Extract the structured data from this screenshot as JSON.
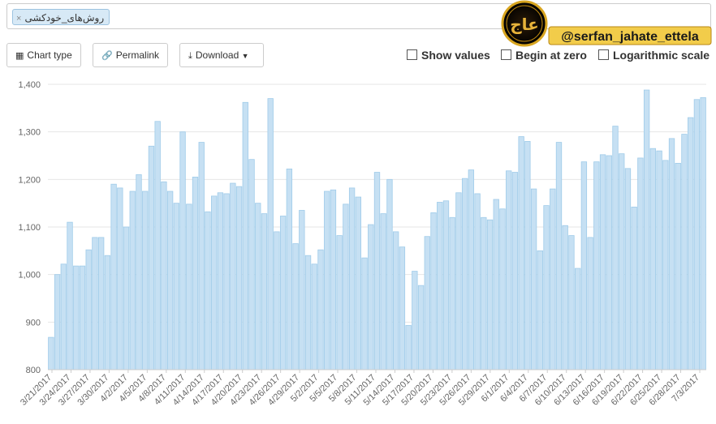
{
  "search": {
    "tag_label": "روش‌های_خودکشی",
    "remove_glyph": "×"
  },
  "watermark": {
    "text": "@serfan_jahate_ettela",
    "emblem_text": "عاج"
  },
  "toolbar": {
    "chart_type_label": "Chart type",
    "permalink_label": "Permalink",
    "download_label": "Download",
    "show_values_label": "Show values",
    "begin_at_zero_label": "Begin at zero",
    "log_scale_label": "Logarithmic scale"
  },
  "colors": {
    "bar_fill": "#c6e0f3",
    "bar_stroke": "#9fcbe9",
    "grid": "#e6e6e6",
    "axis_text": "#666666"
  },
  "chart_data": {
    "type": "bar",
    "ylim": [
      800,
      1400
    ],
    "yticks": [
      "800",
      "900",
      "1,000",
      "1,100",
      "1,200",
      "1,300",
      "1,400"
    ],
    "ytick_values": [
      800,
      900,
      1000,
      1100,
      1200,
      1300,
      1400
    ],
    "xtick_labels": [
      "3/21/2017",
      "3/24/2017",
      "3/27/2017",
      "3/30/2017",
      "4/2/2017",
      "4/5/2017",
      "4/8/2017",
      "4/11/2017",
      "4/14/2017",
      "4/17/2017",
      "4/20/2017",
      "4/23/2017",
      "4/26/2017",
      "4/29/2017",
      "5/2/2017",
      "5/5/2017",
      "5/8/2017",
      "5/11/2017",
      "5/14/2017",
      "5/17/2017",
      "5/20/2017",
      "5/23/2017",
      "5/26/2017",
      "5/29/2017",
      "6/1/2017",
      "6/4/2017",
      "6/7/2017",
      "6/10/2017",
      "6/13/2017",
      "6/16/2017",
      "6/19/2017",
      "6/22/2017",
      "6/25/2017",
      "6/28/2017",
      "7/3/2017"
    ],
    "start_date": "3/21/2017",
    "values": [
      868,
      1000,
      1022,
      1110,
      1018,
      1018,
      1052,
      1078,
      1078,
      1040,
      1190,
      1182,
      1100,
      1175,
      1210,
      1175,
      1270,
      1322,
      1195,
      1175,
      1150,
      1300,
      1148,
      1205,
      1278,
      1132,
      1165,
      1172,
      1170,
      1192,
      1185,
      1362,
      1242,
      1150,
      1128,
      1370,
      1090,
      1123,
      1222,
      1065,
      1135,
      1040,
      1022,
      1052,
      1175,
      1178,
      1082,
      1148,
      1182,
      1163,
      1035,
      1105,
      1215,
      1128,
      1200,
      1090,
      1058,
      893,
      1007,
      977,
      1080,
      1130,
      1152,
      1155,
      1120,
      1172,
      1202,
      1220,
      1170,
      1120,
      1115,
      1158,
      1138,
      1218,
      1215,
      1290,
      1280,
      1180,
      1050,
      1145,
      1180,
      1278,
      1103,
      1082,
      1013,
      1237,
      1078,
      1237,
      1252,
      1250,
      1312,
      1254,
      1223,
      1142,
      1245,
      1388,
      1265,
      1260,
      1240,
      1286,
      1234,
      1295,
      1330,
      1368,
      1372
    ]
  }
}
